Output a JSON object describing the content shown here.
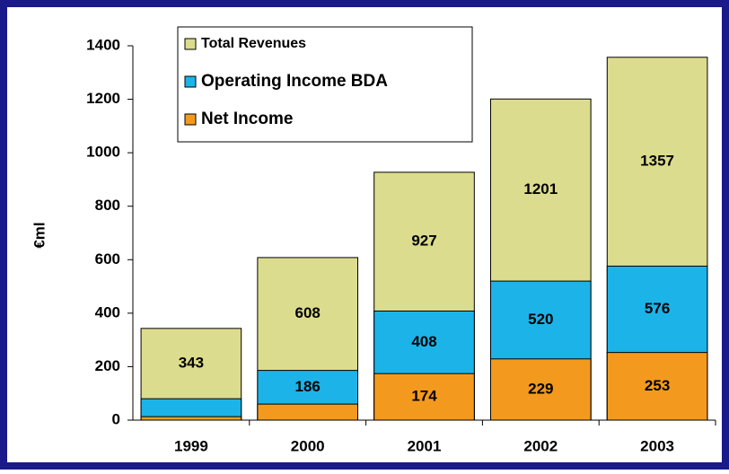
{
  "chart_data": {
    "type": "bar",
    "overlap": true,
    "y_label": "€ml",
    "categories": [
      "1999",
      "2000",
      "2001",
      "2002",
      "2003"
    ],
    "series": [
      {
        "name": "Total Revenues",
        "color": "#dcdc8e",
        "values": [
          343,
          608,
          927,
          1201,
          1357
        ],
        "value_labels": [
          "343",
          "608",
          "927",
          "1201",
          "1357"
        ]
      },
      {
        "name": "Operating Income BDA",
        "color": "#1cb4e8",
        "values": [
          80,
          186,
          408,
          520,
          576
        ],
        "value_labels": [
          null,
          "186",
          "408",
          "520",
          "576"
        ]
      },
      {
        "name": "Net Income",
        "color": "#f39a1e",
        "values": [
          13,
          60,
          174,
          229,
          253
        ],
        "value_labels": [
          null,
          null,
          "174",
          "229",
          "253"
        ]
      }
    ],
    "ylim": [
      0,
      1400
    ],
    "yticks": [
      0,
      200,
      400,
      600,
      800,
      1000,
      1200,
      1400
    ]
  }
}
